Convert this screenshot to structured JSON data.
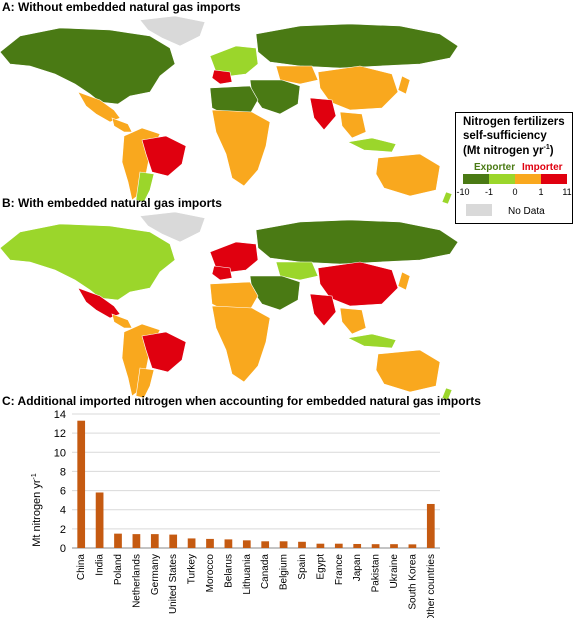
{
  "panels": {
    "a_title": "A: Without embedded natural gas imports",
    "b_title": "B: With embedded natural gas imports",
    "c_title": "C: Additional imported nitrogen when accounting for embedded natural gas imports"
  },
  "legend": {
    "title_line1": "Nitrogen fertilizers",
    "title_line2": "self-sufficiency",
    "title_line3": "(Mt nitrogen yr",
    "title_sup": "-1",
    "title_close": ")",
    "exporter": "Exporter",
    "importer": "Importer",
    "ticks": [
      "-10",
      "-1",
      "0",
      "1",
      "11"
    ],
    "no_data": "No Data",
    "colors": {
      "strong_exporter": "#4a7a14",
      "exporter": "#9bd62b",
      "importer": "#f9a81e",
      "strong_importer": "#e0000f",
      "no_data": "#d9d9d9",
      "exporter_label": "#4a7a14",
      "importer_label": "#e0000f"
    }
  },
  "chart_data": {
    "type": "bar",
    "ylabel": "Mt nitrogen yr",
    "ylabel_sup": "-1",
    "ylim": [
      0,
      14
    ],
    "yticks": [
      0,
      2,
      4,
      6,
      8,
      10,
      12,
      14
    ],
    "grid": true,
    "bar_color": "#c55a11",
    "categories": [
      "China",
      "India",
      "Poland",
      "Netherlands",
      "Germany",
      "United States",
      "Turkey",
      "Morocco",
      "Belarus",
      "Lithuania",
      "Canada",
      "Belgium",
      "Spain",
      "Egypt",
      "France",
      "Japan",
      "Pakistan",
      "Ukraine",
      "South Korea",
      "Other countries"
    ],
    "values": [
      13.3,
      5.8,
      1.5,
      1.45,
      1.45,
      1.4,
      1.0,
      0.95,
      0.9,
      0.8,
      0.7,
      0.7,
      0.65,
      0.45,
      0.45,
      0.42,
      0.4,
      0.4,
      0.38,
      4.6
    ]
  }
}
